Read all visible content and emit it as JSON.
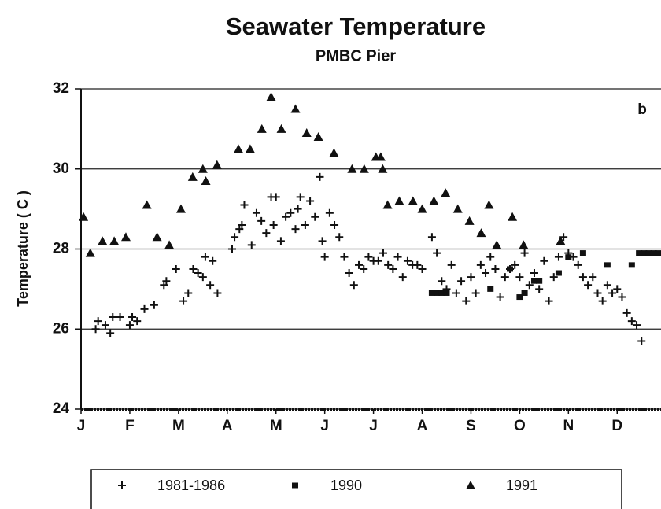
{
  "chart_data": {
    "type": "scatter",
    "title": "Seawater Temperature",
    "subtitle": "PMBC Pier",
    "y_label": "Temperature ( C )",
    "annotation": "b",
    "xlim": [
      0,
      11.9
    ],
    "ylim": [
      24,
      32
    ],
    "xticks": [
      {
        "value": 0,
        "label": "J"
      },
      {
        "value": 1,
        "label": "F"
      },
      {
        "value": 2,
        "label": "M"
      },
      {
        "value": 3,
        "label": "A"
      },
      {
        "value": 4,
        "label": "M"
      },
      {
        "value": 5,
        "label": "J"
      },
      {
        "value": 6,
        "label": "J"
      },
      {
        "value": 7,
        "label": "A"
      },
      {
        "value": 8,
        "label": "S"
      },
      {
        "value": 9,
        "label": "O"
      },
      {
        "value": 10,
        "label": "N"
      },
      {
        "value": 11,
        "label": "D"
      }
    ],
    "yticks": [
      24,
      26,
      28,
      30,
      32
    ],
    "grid": true,
    "legend": "bottom",
    "series": [
      {
        "name": "1981-1986",
        "color": "#111111",
        "marker": "plus",
        "x": [
          0.3,
          0.35,
          0.5,
          0.6,
          0.65,
          0.8,
          1.0,
          1.05,
          1.15,
          1.3,
          1.5,
          1.7,
          1.75,
          1.95,
          2.1,
          2.2,
          2.3,
          2.4,
          2.5,
          2.55,
          2.65,
          2.7,
          2.8,
          3.1,
          3.15,
          3.25,
          3.3,
          3.35,
          3.5,
          3.6,
          3.7,
          3.8,
          3.9,
          3.95,
          4.0,
          4.1,
          4.2,
          4.3,
          4.4,
          4.45,
          4.5,
          4.6,
          4.7,
          4.8,
          4.9,
          4.95,
          5.0,
          5.1,
          5.2,
          5.3,
          5.4,
          5.5,
          5.6,
          5.7,
          5.8,
          5.9,
          6.0,
          6.1,
          6.2,
          6.3,
          6.4,
          6.5,
          6.6,
          6.7,
          6.8,
          6.9,
          7.0,
          7.2,
          7.3,
          7.4,
          7.5,
          7.6,
          7.7,
          7.8,
          7.9,
          8.0,
          8.1,
          8.2,
          8.3,
          8.4,
          8.5,
          8.6,
          8.7,
          8.8,
          8.9,
          9.0,
          9.1,
          9.2,
          9.3,
          9.4,
          9.5,
          9.6,
          9.7,
          9.8,
          9.9,
          10.0,
          10.1,
          10.2,
          10.3,
          10.4,
          10.5,
          10.6,
          10.7,
          10.8,
          10.9,
          11.0,
          11.1,
          11.2,
          11.3,
          11.4,
          11.5
        ],
        "values": [
          26.0,
          26.2,
          26.1,
          25.9,
          26.3,
          26.3,
          26.1,
          26.3,
          26.2,
          26.5,
          26.6,
          27.1,
          27.2,
          27.5,
          26.7,
          26.9,
          27.5,
          27.4,
          27.3,
          27.8,
          27.1,
          27.7,
          26.9,
          28.0,
          28.3,
          28.5,
          28.6,
          29.1,
          28.1,
          28.9,
          28.7,
          28.4,
          29.3,
          28.6,
          29.3,
          28.2,
          28.8,
          28.9,
          28.5,
          29.0,
          29.3,
          28.6,
          29.2,
          28.8,
          29.8,
          28.2,
          27.8,
          28.9,
          28.6,
          28.3,
          27.8,
          27.4,
          27.1,
          27.6,
          27.5,
          27.8,
          27.7,
          27.7,
          27.9,
          27.6,
          27.5,
          27.8,
          27.3,
          27.7,
          27.6,
          27.6,
          27.5,
          28.3,
          27.9,
          27.2,
          27.0,
          27.6,
          26.9,
          27.2,
          26.7,
          27.3,
          26.9,
          27.6,
          27.4,
          27.8,
          27.5,
          26.8,
          27.3,
          27.5,
          27.6,
          27.3,
          27.9,
          27.1,
          27.4,
          27.0,
          27.7,
          26.7,
          27.3,
          27.8,
          28.3,
          27.9,
          27.8,
          27.6,
          27.3,
          27.1,
          27.3,
          26.9,
          26.7,
          27.1,
          26.9,
          27.0,
          26.8,
          26.4,
          26.2,
          26.1,
          25.7
        ]
      },
      {
        "name": "1990",
        "color": "#111111",
        "marker": "square",
        "x": [
          7.2,
          7.3,
          7.4,
          7.5,
          8.4,
          8.8,
          9.0,
          9.1,
          9.3,
          9.4,
          9.8,
          10.0,
          10.3,
          10.8,
          11.3,
          11.45,
          11.55,
          11.65,
          11.75,
          11.85
        ],
        "values": [
          26.9,
          26.9,
          26.9,
          26.9,
          27.0,
          27.5,
          26.8,
          26.9,
          27.2,
          27.2,
          27.4,
          27.8,
          27.9,
          27.6,
          27.6,
          27.9,
          27.9,
          27.9,
          27.9,
          27.9
        ]
      },
      {
        "name": "1991",
        "color": "#111111",
        "marker": "triangle",
        "x": [
          0.05,
          0.19,
          0.44,
          0.68,
          0.92,
          1.35,
          1.56,
          1.81,
          2.05,
          2.29,
          2.5,
          2.56,
          2.79,
          3.23,
          3.47,
          3.71,
          3.9,
          4.11,
          4.4,
          4.63,
          4.87,
          5.19,
          5.56,
          5.81,
          6.05,
          6.15,
          6.19,
          6.29,
          6.53,
          6.81,
          7.0,
          7.24,
          7.48,
          7.73,
          7.97,
          8.21,
          8.37,
          8.53,
          8.85,
          9.08,
          9.84
        ],
        "values": [
          28.8,
          27.9,
          28.2,
          28.2,
          28.3,
          29.1,
          28.3,
          28.1,
          29.0,
          29.8,
          30.0,
          29.7,
          30.1,
          30.5,
          30.5,
          31.0,
          31.8,
          31.0,
          31.5,
          30.9,
          30.8,
          30.4,
          30.0,
          30.0,
          30.3,
          30.3,
          30.0,
          29.1,
          29.2,
          29.2,
          29.0,
          29.2,
          29.4,
          29.0,
          28.7,
          28.4,
          29.1,
          28.1,
          28.8,
          28.1,
          28.2
        ]
      }
    ]
  }
}
